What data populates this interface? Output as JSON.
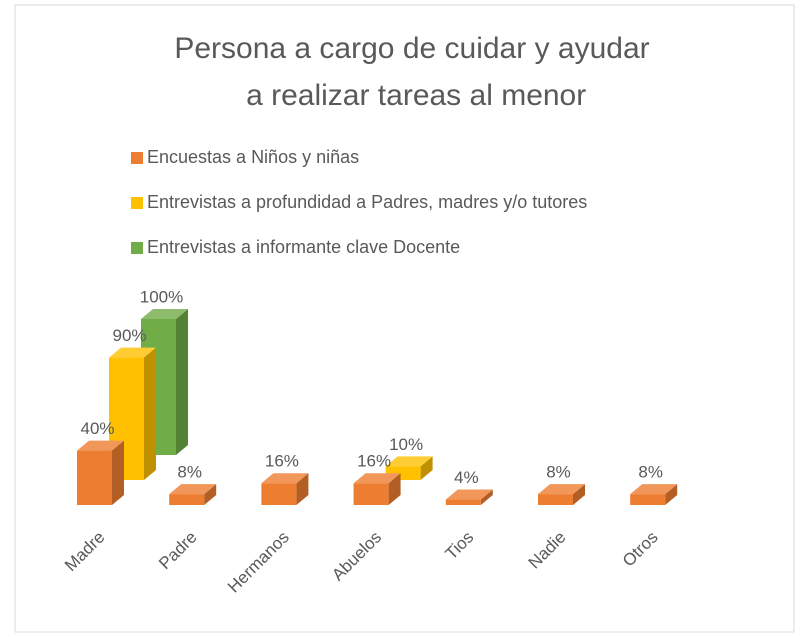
{
  "chart_data": {
    "type": "bar3d",
    "title": "Persona a cargo de cuidar y ayudar a realizar tareas al menor",
    "categories": [
      "Madre",
      "Padre",
      "Hermanos",
      "Abuelos",
      "Tios",
      "Nadie",
      "Otros"
    ],
    "series": [
      {
        "name": "Encuestas a Niños y niñas",
        "color": "#ED7D31",
        "values": [
          40,
          8,
          16,
          16,
          4,
          8,
          8
        ],
        "value_labels": [
          "40%",
          "8%",
          "16%",
          "16%",
          "4%",
          "8%",
          "8%"
        ]
      },
      {
        "name": "Entrevistas a profundidad a Padres, madres y/o tutores",
        "color": "#FFC000",
        "values": [
          90,
          null,
          null,
          10,
          null,
          null,
          null
        ],
        "value_labels": [
          "90%",
          null,
          null,
          "10%",
          null,
          null,
          null
        ]
      },
      {
        "name": "Entrevistas a informante clave Docente",
        "color": "#70AD47",
        "values": [
          100,
          null,
          null,
          null,
          null,
          null,
          null
        ],
        "value_labels": [
          "100%",
          null,
          null,
          null,
          null,
          null,
          null
        ]
      }
    ],
    "legend": "top"
  }
}
